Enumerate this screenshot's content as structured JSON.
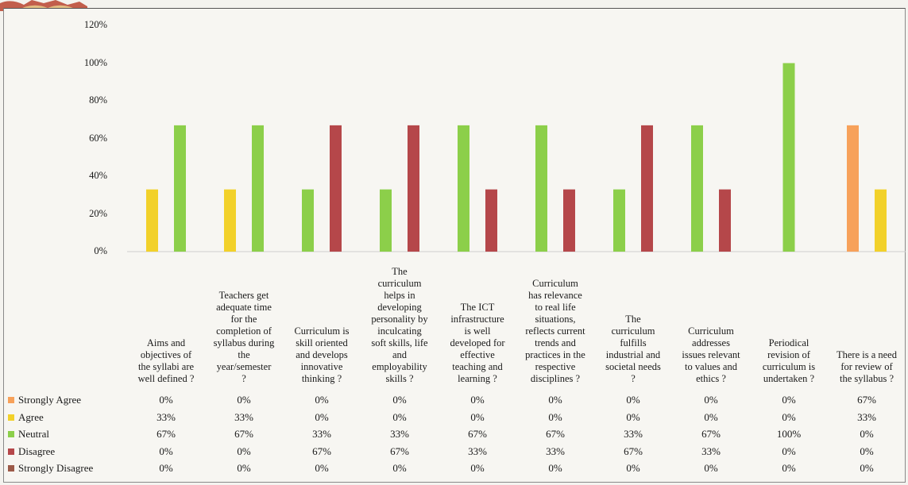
{
  "colors": {
    "Strongly Agree": "#f7a15a",
    "Agree": "#f2d12a",
    "Neutral": "#8ccf4a",
    "Disagree": "#b5474a",
    "Strongly Disagree": "#9c5a48"
  },
  "chart_data": {
    "type": "bar",
    "title": "",
    "xlabel": "",
    "ylabel": "",
    "ylim": [
      0,
      120
    ],
    "yticks": [
      "0%",
      "20%",
      "40%",
      "60%",
      "80%",
      "100%",
      "120%"
    ],
    "grid": false,
    "legend": "left of data table",
    "categories": [
      "Aims and objectives of the syllabi are well defined ?",
      "Teachers get adequate time for the completion of syllabus during the year/semester ?",
      "Curriculum is skill oriented and develops innovative thinking ?",
      "The curriculum helps in developing personality by inculcating soft skills, life and employability skills ?",
      "The ICT infrastructure is well developed for effective teaching and learning ?",
      "Curriculum has relevance to real life situations, reflects current trends and practices in the respective disciplines ?",
      "The curriculum fulfills industrial and societal needs ?",
      "Curriculum addresses issues relevant to values and ethics ?",
      "Periodical revision of curriculum is undertaken ?",
      "There is a need for review of the syllabus ?"
    ],
    "category_lines": [
      [
        "Aims and",
        "objectives of",
        "the syllabi are",
        "well defined ?"
      ],
      [
        "Teachers get",
        "adequate time",
        "for the",
        "completion of",
        "syllabus during",
        "the",
        "year/semester",
        "?"
      ],
      [
        "Curriculum is",
        "skill oriented",
        "and develops",
        "innovative",
        "thinking ?"
      ],
      [
        "The",
        "curriculum",
        "helps in",
        "developing",
        "personality by",
        "inculcating",
        "soft skills, life",
        "and",
        "employability",
        "skills ?"
      ],
      [
        "The ICT",
        "infrastructure",
        "is well",
        "developed for",
        "effective",
        "teaching and",
        "learning ?"
      ],
      [
        "Curriculum",
        "has relevance",
        "to real life",
        "situations,",
        "reflects current",
        "trends and",
        "practices in the",
        "respective",
        "disciplines ?"
      ],
      [
        "The",
        "curriculum",
        "fulfills",
        "industrial and",
        "societal needs",
        "?"
      ],
      [
        "Curriculum",
        "addresses",
        "issues relevant",
        "to values and",
        "ethics ?"
      ],
      [
        "Periodical",
        "revision of",
        "curriculum is",
        "undertaken ?"
      ],
      [
        "There is a need",
        "for review of",
        "the syllabus ?"
      ]
    ],
    "series": [
      {
        "name": "Strongly Agree",
        "values": [
          0,
          0,
          0,
          0,
          0,
          0,
          0,
          0,
          0,
          67
        ],
        "labels": [
          "0%",
          "0%",
          "0%",
          "0%",
          "0%",
          "0%",
          "0%",
          "0%",
          "0%",
          "67%"
        ]
      },
      {
        "name": "Agree",
        "values": [
          33,
          33,
          0,
          0,
          0,
          0,
          0,
          0,
          0,
          33
        ],
        "labels": [
          "33%",
          "33%",
          "0%",
          "0%",
          "0%",
          "0%",
          "0%",
          "0%",
          "0%",
          "33%"
        ]
      },
      {
        "name": "Neutral",
        "values": [
          67,
          67,
          33,
          33,
          67,
          67,
          33,
          67,
          100,
          0
        ],
        "labels": [
          "67%",
          "67%",
          "33%",
          "33%",
          "67%",
          "67%",
          "33%",
          "67%",
          "100%",
          "0%"
        ]
      },
      {
        "name": "Disagree",
        "values": [
          0,
          0,
          67,
          67,
          33,
          33,
          67,
          33,
          0,
          0
        ],
        "labels": [
          "0%",
          "0%",
          "67%",
          "67%",
          "33%",
          "33%",
          "67%",
          "33%",
          "0%",
          "0%"
        ]
      },
      {
        "name": "Strongly Disagree",
        "values": [
          0,
          0,
          0,
          0,
          0,
          0,
          0,
          0,
          0,
          0
        ],
        "labels": [
          "0%",
          "0%",
          "0%",
          "0%",
          "0%",
          "0%",
          "0%",
          "0%",
          "0%",
          "0%"
        ]
      }
    ]
  }
}
